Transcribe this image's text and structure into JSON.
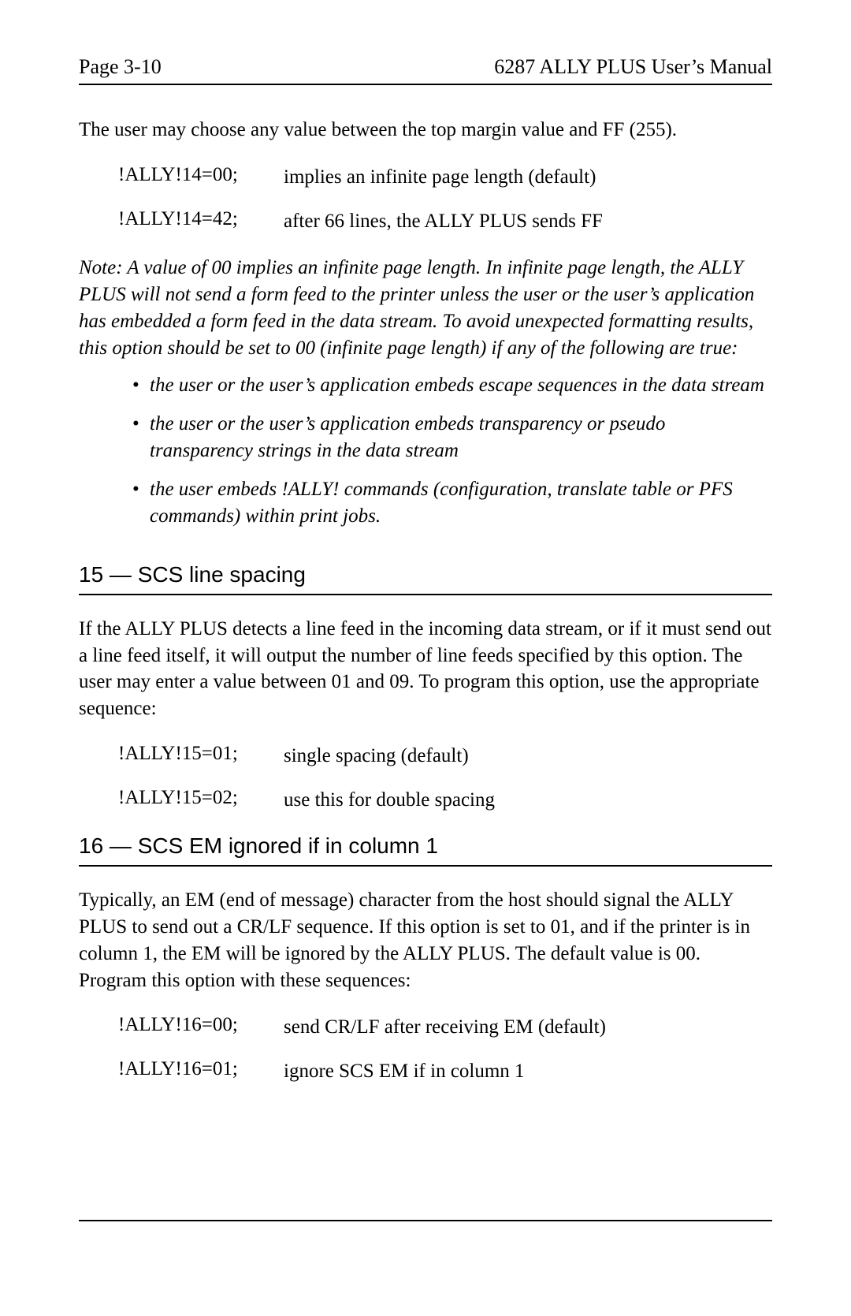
{
  "header": {
    "left": "Page 3-10",
    "right": "6287 ALLY PLUS User’s Manual"
  },
  "intro_para": "The user may choose any value between the top margin value and FF (255).",
  "cmd14": {
    "rows": [
      {
        "code": "!ALLY!14=00;",
        "desc": "implies an infinite page length (default)"
      },
      {
        "code": "!ALLY!14=42;",
        "desc": "after 66 lines, the ALLY PLUS sends FF"
      }
    ]
  },
  "note14": "Note: A value of 00 implies an infinite page length. In infinite page length, the ALLY PLUS will not send a form feed to the printer unless the user or the user’s application has embedded a form feed in the data stream. To avoid unexpected formatting results, this option should be set to 00 (infinite page length) if any of the following are true:",
  "note14_bullets": [
    "the user or the user’s application embeds escape sequences in the data stream",
    "the user or the user’s application embeds transparency or pseudo transparency strings in the data stream",
    "the user embeds !ALLY! commands (configuration, translate table or PFS commands) within print jobs."
  ],
  "section15": {
    "heading": "15 — SCS line spacing",
    "para": "If the ALLY PLUS detects a line feed in the incoming data stream, or if it must send out a line feed itself, it will output the number of line feeds specified by this option. The user may enter a value between 01 and 09. To program this option, use the appropriate sequence:",
    "rows": [
      {
        "code": "!ALLY!15=01;",
        "desc": "single spacing (default)"
      },
      {
        "code": "!ALLY!15=02;",
        "desc": "use this for double spacing"
      }
    ]
  },
  "section16": {
    "heading": "16 — SCS EM ignored if in column 1",
    "para": "Typically, an EM (end of message) character from the host should signal the ALLY PLUS to send out a CR/LF sequence. If this option is set to 01, and if the printer is in column 1, the EM will be ignored by the ALLY PLUS. The default value is 00. Program this option with these sequences:",
    "rows": [
      {
        "code": "!ALLY!16=00;",
        "desc": "send CR/LF after receiving EM (default)"
      },
      {
        "code": "!ALLY!16=01;",
        "desc": "ignore SCS EM if in column 1"
      }
    ]
  }
}
